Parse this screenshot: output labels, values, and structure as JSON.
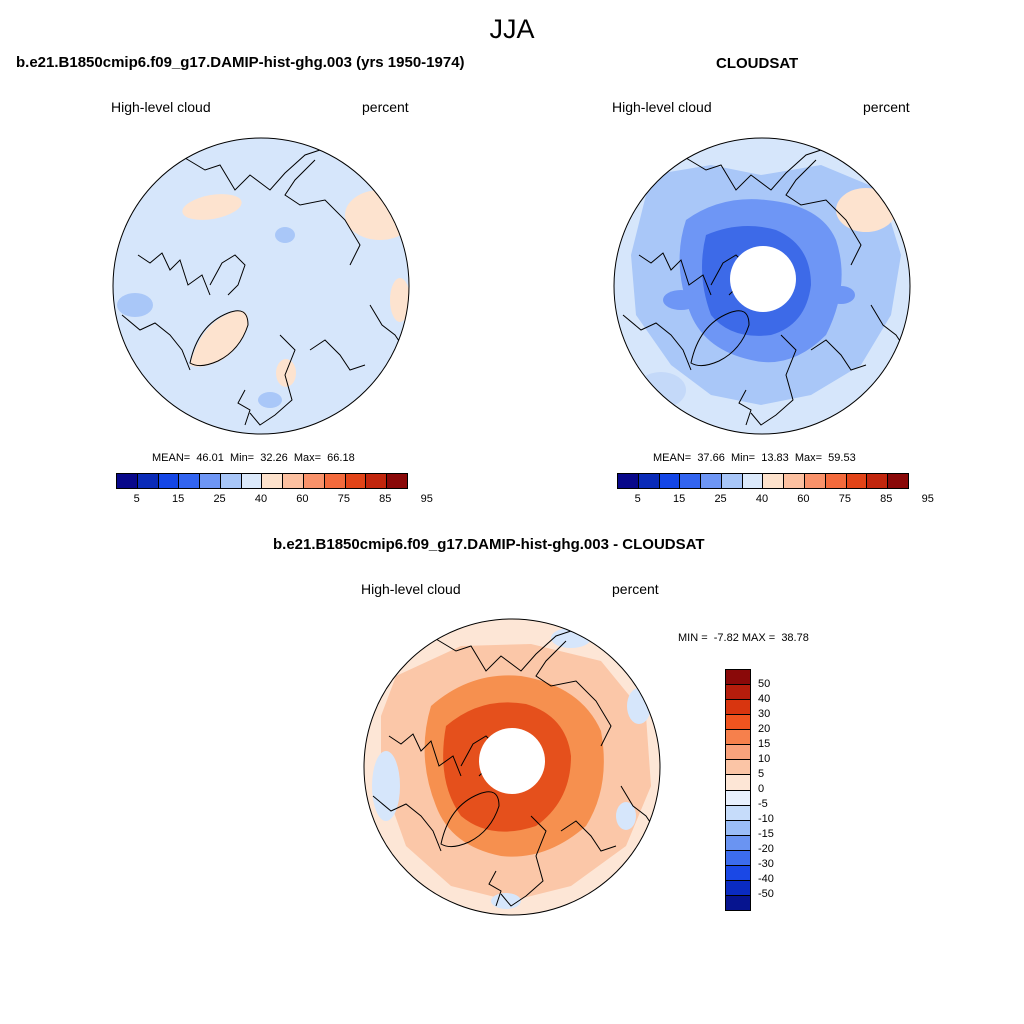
{
  "season": "JJA",
  "panels": [
    {
      "title": "b.e21.B1850cmip6.f09_g17.DAMIP-hist-ghg.003 (yrs 1950-1974)",
      "variable": "High-level cloud",
      "units": "percent",
      "stats": "MEAN=  46.01  Min=  32.26  Max=  66.18",
      "mean": 46.01,
      "min": 32.26,
      "max": 66.18
    },
    {
      "title": "CLOUDSAT",
      "variable": "High-level cloud",
      "units": "percent",
      "stats": "MEAN=  37.66  Min=  13.83  Max=  59.53",
      "mean": 37.66,
      "min": 13.83,
      "max": 59.53
    },
    {
      "title": "b.e21.B1850cmip6.f09_g17.DAMIP-hist-ghg.003 - CLOUDSAT",
      "variable": "High-level cloud",
      "units": "percent",
      "stats": "MIN =  -7.82 MAX =  38.78",
      "min": -7.82,
      "max": 38.78
    }
  ],
  "colorbar_abs": {
    "colors": [
      "#08088a",
      "#0a2bb8",
      "#1446e6",
      "#3264f0",
      "#6e96f5",
      "#a8c6f8",
      "#dbe9fb",
      "#fde2cc",
      "#fcc0a0",
      "#f9926a",
      "#f36a3c",
      "#e24418",
      "#c2260d",
      "#8a0909"
    ],
    "tick_labels": [
      "5",
      "15",
      "25",
      "40",
      "60",
      "75",
      "85",
      "95"
    ]
  },
  "colorbar_diff": {
    "colors": [
      "#8a0909",
      "#b51d0c",
      "#d8350f",
      "#f0541f",
      "#f6804c",
      "#f9a27c",
      "#fbc5a6",
      "#fde6d6",
      "#e8f0fd",
      "#c6dcfa",
      "#9abdf7",
      "#6a94f2",
      "#3c6cee",
      "#1a48e6",
      "#0a2bc2",
      "#06148f"
    ],
    "tick_labels": [
      "50",
      "40",
      "30",
      "20",
      "15",
      "10",
      "5",
      "0",
      "-5",
      "-10",
      "-15",
      "-20",
      "-30",
      "-40",
      "-50"
    ]
  },
  "map_colors": {
    "background_light_blue": "#d6e6fb",
    "light_peach": "#fde3cf",
    "mid_blue": "#a9c7f8",
    "blue": "#6e96f5",
    "deep_blue": "#3d6ae8",
    "diff_peach": "#fbc7a8",
    "diff_orange": "#f6904f",
    "diff_red": "#e5501c",
    "coastline": "#000000"
  }
}
